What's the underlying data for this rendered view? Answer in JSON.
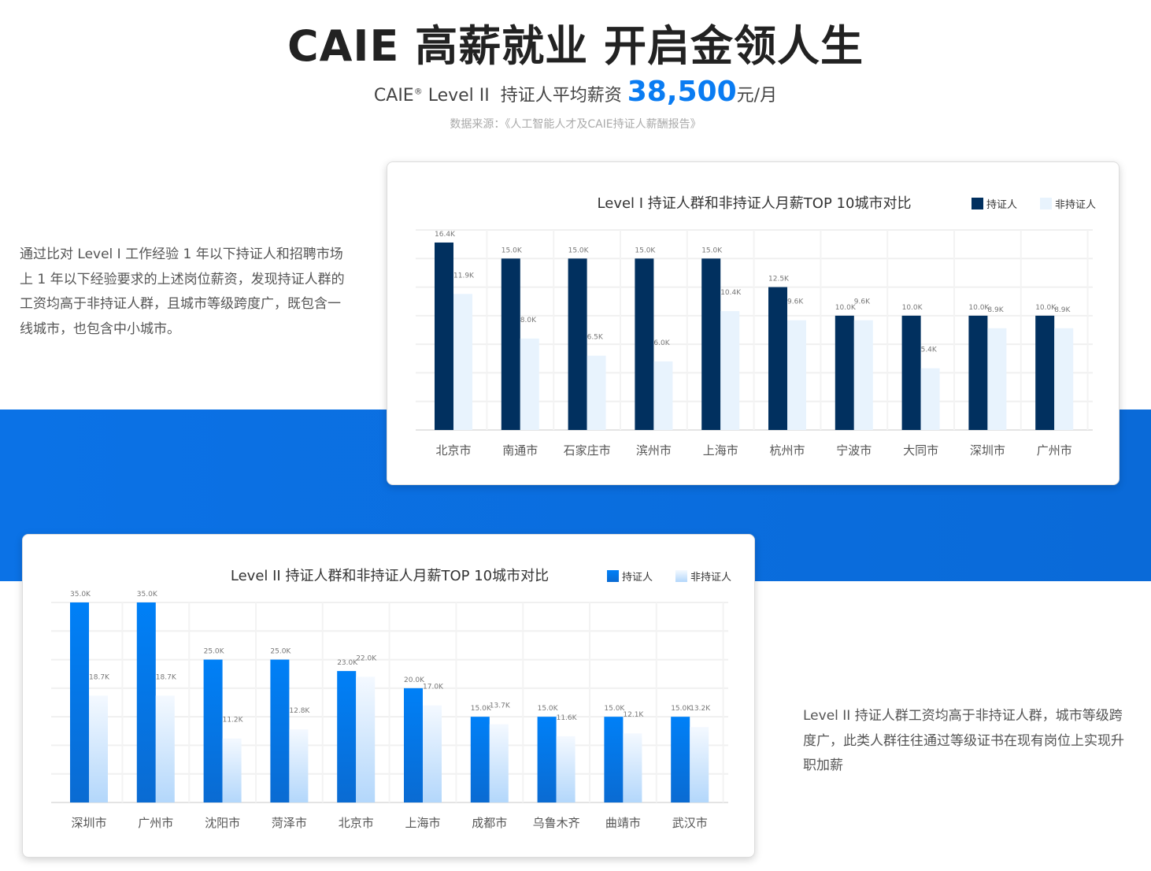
{
  "header": {
    "title": "CAIE 高薪就业  开启金领人生",
    "subtitle_prefix": "CAIE",
    "registered": "®",
    "subtitle_level": " Level II  持证人平均薪资 ",
    "salary": "38,500",
    "unit": "元/月",
    "source": "数据来源：《人工智能人才及CAIE持证人薪酬报告》"
  },
  "desc1": "通过比对 Level I 工作经验 1 年以下持证人和招聘市场 上 1 年以下经验要求的上述岗位薪资，发现持证人群的工资均高于非持证人群，且城市等级跨度广，既包含一线城市，也包含中小城市。",
  "desc2": "Level II 持证人群工资均高于非持证人群，城市等级跨度广，此类人群往往通过等级证书在现有岗位上实现升职加薪",
  "colors": {
    "band": "#0b72e6",
    "salary": "#0a7cf2",
    "l1_cert": "#01305f",
    "l1_non": "#e8f3fd",
    "l2_cert": "#0a7cf2",
    "l2_non": "#cfe6fd"
  },
  "chart_data": [
    {
      "type": "bar",
      "title": "Level I 持证人群和非持证人月薪TOP 10城市对比",
      "legend_position": "top-right",
      "grid": true,
      "ylim": [
        0,
        17.5
      ],
      "unit": "K",
      "categories": [
        "北京市",
        "南通市",
        "石家庄市",
        "滨州市",
        "上海市",
        "杭州市",
        "宁波市",
        "大同市",
        "深圳市",
        "广州市"
      ],
      "series": [
        {
          "name": "持证人",
          "values": [
            16.4,
            15.0,
            15.0,
            15.0,
            15.0,
            12.5,
            10.0,
            10.0,
            10.0,
            10.0
          ]
        },
        {
          "name": "非持证人",
          "values": [
            11.9,
            8.0,
            6.5,
            6.0,
            10.4,
            9.6,
            9.6,
            5.4,
            8.9,
            8.9
          ]
        }
      ]
    },
    {
      "type": "bar",
      "title": "Level II 持证人群和非持证人月薪TOP 10城市对比",
      "legend_position": "top-right",
      "grid": true,
      "ylim": [
        0,
        35
      ],
      "unit": "K",
      "categories": [
        "深圳市",
        "广州市",
        "沈阳市",
        "菏泽市",
        "北京市",
        "上海市",
        "成都市",
        "乌鲁木齐",
        "曲靖市",
        "武汉市"
      ],
      "series": [
        {
          "name": "持证人",
          "values": [
            35.0,
            35.0,
            25.0,
            25.0,
            23.0,
            20.0,
            15.0,
            15.0,
            15.0,
            15.0
          ]
        },
        {
          "name": "非持证人",
          "values": [
            18.7,
            18.7,
            11.2,
            12.8,
            22.0,
            17.0,
            13.7,
            11.6,
            12.1,
            13.2
          ]
        }
      ]
    }
  ]
}
